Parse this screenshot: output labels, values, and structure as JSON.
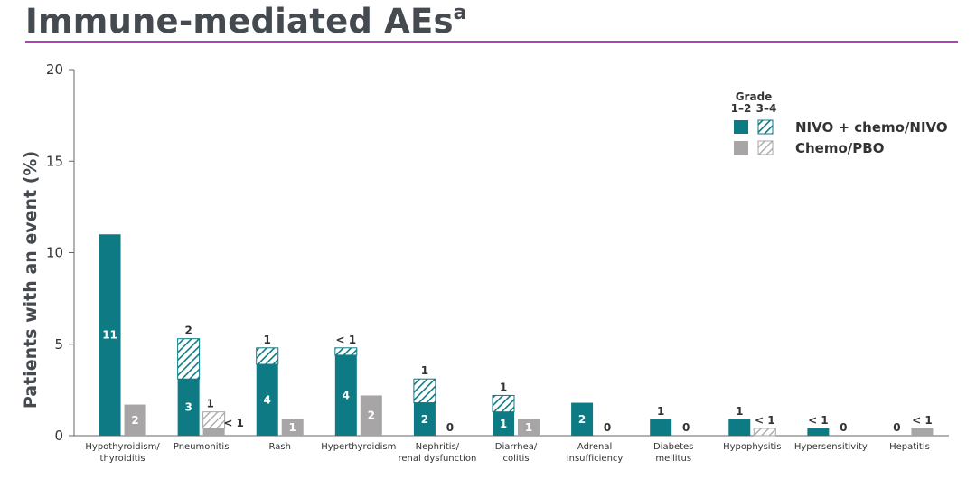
{
  "page": {
    "title": "Immune-mediated AEs",
    "title_superscript": "a"
  },
  "chart_data": {
    "type": "bar",
    "subtype": "grouped-stacked",
    "ylabel": "Patients with an event (%)",
    "ylim": [
      0,
      20
    ],
    "yticks": [
      0,
      5,
      10,
      15,
      20
    ],
    "categories": [
      "Hypothyroidism/ thyroiditis",
      "Pneumonitis",
      "Rash",
      "Hyperthyroidism",
      "Nephritis/ renal dysfunction",
      "Diarrhea/ colitis",
      "Adrenal insufficiency",
      "Diabetes mellitus",
      "Hypophysitis",
      "Hypersensitivity",
      "Hepatitis"
    ],
    "category_lines": [
      [
        "Hypothyroidism/",
        "thyroiditis"
      ],
      [
        "Pneumonitis"
      ],
      [
        "Rash"
      ],
      [
        "Hyperthyroidism"
      ],
      [
        "Nephritis/",
        "renal dysfunction"
      ],
      [
        "Diarrhea/",
        "colitis"
      ],
      [
        "Adrenal",
        "insufficiency"
      ],
      [
        "Diabetes",
        "mellitus"
      ],
      [
        "Hypophysitis"
      ],
      [
        "Hypersensitivity"
      ],
      [
        "Hepatitis"
      ]
    ],
    "series": [
      {
        "name": "NIVO + chemo/NIVO",
        "color": "#0e7a84",
        "grade12_values": [
          11.0,
          3.1,
          3.9,
          4.4,
          1.8,
          1.3,
          1.8,
          0.9,
          0.9,
          0.4,
          0.0
        ],
        "grade34_values": [
          0.0,
          2.2,
          0.9,
          0.4,
          1.3,
          0.9,
          0.0,
          0.0,
          0.0,
          0.0,
          0.0
        ],
        "grade12_labels": [
          "11",
          "3",
          "4",
          "4",
          "2",
          "1",
          "2",
          "1",
          "1",
          "< 1",
          "0"
        ],
        "grade34_labels": [
          "",
          "2",
          "1",
          "< 1",
          "1",
          "1",
          "",
          "",
          "",
          "",
          ""
        ]
      },
      {
        "name": "Chemo/PBO",
        "color": "#a7a5a5",
        "grade12_values": [
          1.7,
          0.4,
          0.9,
          2.2,
          0.0,
          0.9,
          0.0,
          0.0,
          0.0,
          0.0,
          0.4
        ],
        "grade34_values": [
          0.0,
          0.9,
          0.0,
          0.0,
          0.0,
          0.0,
          0.0,
          0.0,
          0.4,
          0.0,
          0.0
        ],
        "grade12_labels": [
          "2",
          "< 1",
          "1",
          "2",
          "0",
          "1",
          "0",
          "0",
          "",
          "0",
          "< 1"
        ],
        "grade34_labels": [
          "",
          "1",
          "",
          "",
          "",
          "",
          "",
          "",
          "< 1",
          "",
          ""
        ]
      }
    ],
    "legend": {
      "placement": "top-right",
      "heading": "Grade",
      "col_labels": [
        "1–2",
        "3–4"
      ],
      "entries": [
        "NIVO + chemo/NIVO",
        "Chemo/PBO"
      ]
    },
    "grid": false
  }
}
